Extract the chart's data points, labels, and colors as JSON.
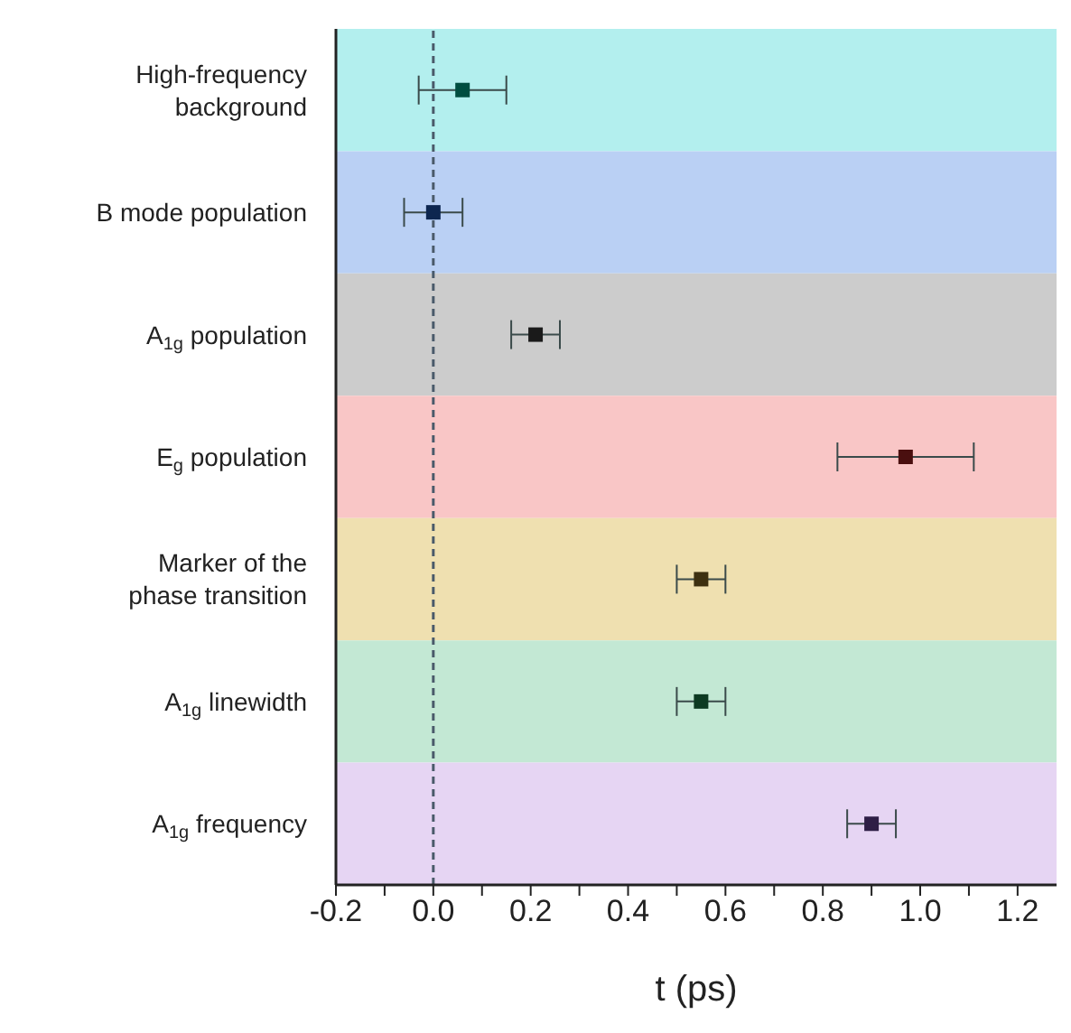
{
  "chart_data": {
    "type": "scatter",
    "categories": [
      "High-frequency background",
      "B mode population",
      "A$_{1g}$ population",
      "E$_{g}$ population",
      "Marker of the phase transition",
      "A$_{1g}$ linewidth",
      "A$_{1g}$ frequency"
    ],
    "orientation": "horizontal",
    "values": [
      0.06,
      0.0,
      0.21,
      0.97,
      0.55,
      0.55,
      0.9
    ],
    "errors": [
      [
        -0.03,
        0.15
      ],
      0.06,
      0.05,
      [
        0.83,
        1.11
      ],
      0.05,
      0.05,
      0.05
    ],
    "colors": [
      "#004d40",
      "#0d2650",
      "#1a1a1a",
      "#4a0f0f",
      "#3d3010",
      "#0d3a22",
      "#2e1e45"
    ],
    "marker": "square",
    "xlabel": "t (ps)",
    "xlim": [
      -0.2,
      1.28
    ],
    "xticks": [
      -0.2,
      {
        "value": -0.1,
        "label": null
      },
      {
        "value": 0,
        "label": "0.0"
      },
      {
        "value": 0.1,
        "label": null
      },
      0.2,
      {
        "value": 0.3,
        "label": null
      },
      0.4,
      {
        "value": 0.5,
        "label": null
      },
      0.6,
      {
        "value": 0.7,
        "label": null
      },
      0.8,
      {
        "value": 0.9,
        "label": null
      },
      {
        "value": 1,
        "label": "1.0"
      },
      {
        "value": 1.1,
        "label": null
      },
      1.2
    ],
    "ref_lines": [
      {
        "axis": "x",
        "value": 0,
        "line_style": "dashed",
        "color": "#4a5a6a"
      }
    ],
    "bands": [
      {
        "axis": "y",
        "from": "High-frequency background",
        "to": "High-frequency background",
        "color": "#b3efee"
      },
      {
        "axis": "y",
        "from": "B mode population",
        "to": "B mode population",
        "color": "#bad0f4"
      },
      {
        "axis": "y",
        "from": "A$_{1g}$ population",
        "to": "A$_{1g}$ population",
        "color": "#cccccc"
      },
      {
        "axis": "y",
        "from": "E$_{g}$ population",
        "to": "E$_{g}$ population",
        "color": "#f9c6c6"
      },
      {
        "axis": "y",
        "from": "Marker of the phase transition",
        "to": "Marker of the phase transition",
        "color": "#efe0b0"
      },
      {
        "axis": "y",
        "from": "A$_{1g}$ linewidth",
        "to": "A$_{1g}$ linewidth",
        "color": "#c3e8d4"
      },
      {
        "axis": "y",
        "from": "A$_{1g}$ frequency",
        "to": "A$_{1g}$ frequency",
        "color": "#e6d5f3"
      }
    ]
  }
}
